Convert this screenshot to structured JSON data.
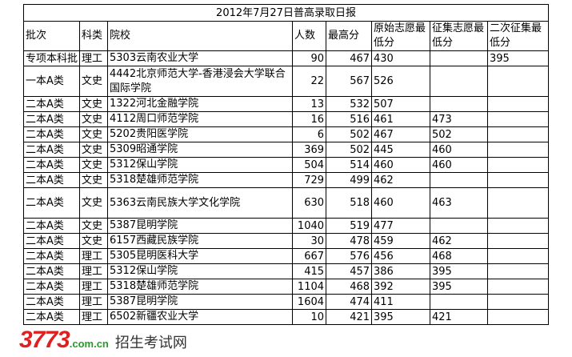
{
  "title": "2012年7月27日普高录取日报",
  "headers": [
    "批次",
    "科类",
    "院校",
    "人数",
    "最高分",
    "原始志愿最低分",
    "征集志愿最低分",
    "二次征集最低分"
  ],
  "rows": [
    [
      "专项本科批",
      "理工",
      "5303云南农业大学",
      "90",
      "467",
      "430",
      "",
      "395"
    ],
    [
      "一本A类",
      "文史",
      "4442北京师范大学-香港浸会大学联合国际学院",
      "22",
      "567",
      "526",
      "",
      ""
    ],
    [
      "二本A类",
      "文史",
      "1322河北金融学院",
      "13",
      "532",
      "507",
      "",
      ""
    ],
    [
      "二本A类",
      "文史",
      "4112周口师范学院",
      "16",
      "516",
      "461",
      "473",
      ""
    ],
    [
      "二本A类",
      "文史",
      "5202贵阳医学院",
      "6",
      "502",
      "467",
      "502",
      ""
    ],
    [
      "二本A类",
      "文史",
      "5309昭通学院",
      "369",
      "502",
      "445",
      "460",
      ""
    ],
    [
      "二本A类",
      "文史",
      "5312保山学院",
      "504",
      "514",
      "460",
      "460",
      ""
    ],
    [
      "二本A类",
      "文史",
      "5318楚雄师范学院",
      "729",
      "499",
      "462",
      "",
      ""
    ],
    [
      "二本A类",
      "文史",
      "5363云南民族大学文化学院",
      "630",
      "518",
      "460",
      "463",
      ""
    ],
    [
      "二本A类",
      "文史",
      "5387昆明学院",
      "1040",
      "519",
      "477",
      "",
      ""
    ],
    [
      "二本A类",
      "文史",
      "6157西藏民族学院",
      "30",
      "478",
      "459",
      "462",
      ""
    ],
    [
      "二本A类",
      "理工",
      "5305昆明医科大学",
      "667",
      "576",
      "456",
      "468",
      ""
    ],
    [
      "二本A类",
      "理工",
      "5312保山学院",
      "415",
      "457",
      "386",
      "395",
      ""
    ],
    [
      "二本A类",
      "理工",
      "5318楚雄师范学院",
      "1104",
      "468",
      "392",
      "395",
      ""
    ],
    [
      "二本A类",
      "理工",
      "5387昆明学院",
      "1604",
      "474",
      "411",
      "",
      ""
    ],
    [
      "二本A类",
      "理工",
      "6502新疆农业大学",
      "10",
      "421",
      "395",
      "421",
      ""
    ]
  ],
  "watermark": {
    "number": "3773",
    "domain": ".com.cn",
    "subtitle": "招生考试网"
  }
}
